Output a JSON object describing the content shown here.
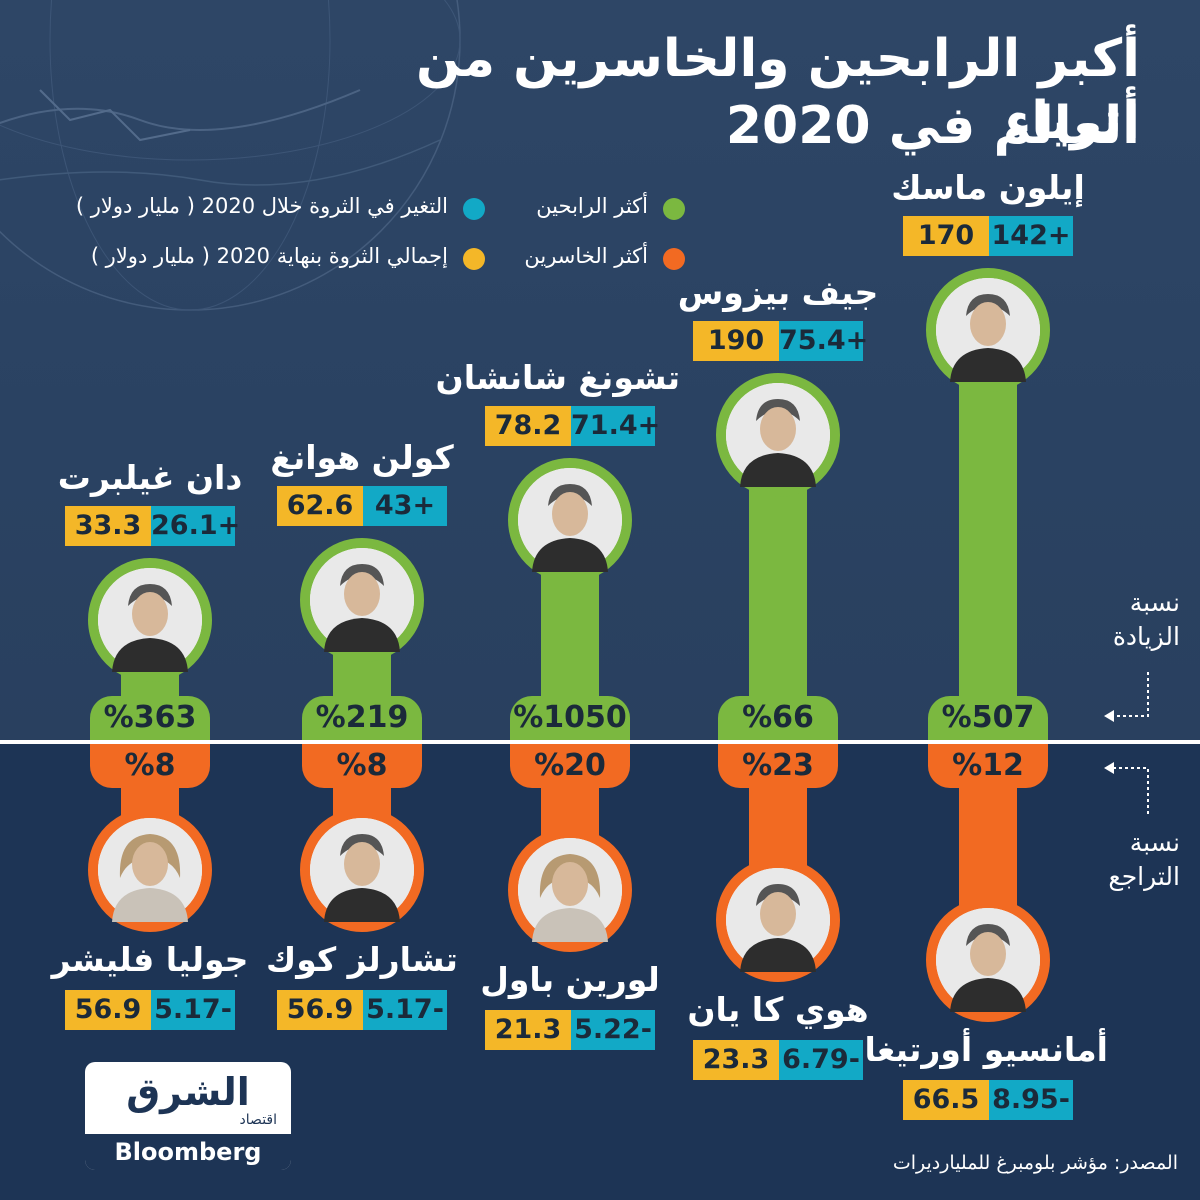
{
  "title": {
    "line1": "أكبر الرابحين والخاسرين من أثرياء",
    "line2": "العالم في 2020"
  },
  "legend": {
    "gainers": "أكثر الرابحين",
    "losers": "أكثر الخاسرين",
    "change": "التغير في الثروة خلال 2020 ( مليار دولار )",
    "total": "إجمالي الثروة بنهاية 2020 ( مليار دولار )"
  },
  "side_labels": {
    "increase_1": "نسبة",
    "increase_2": "الزيادة",
    "decrease_1": "نسبة",
    "decrease_2": "التراجع"
  },
  "colors": {
    "gainer": "#7bb840",
    "loser": "#f26a22",
    "change": "#12a9c6",
    "total": "#f4b728"
  },
  "source": "المصدر: مؤشر بلومبرغ للمليارديرات",
  "logo": {
    "arabic": "الشرق",
    "sub": "اقتصاد",
    "bloomberg": "Bloomberg"
  },
  "chart_data": {
    "type": "bar",
    "title": "أكبر الرابحين والخاسرين من أثرياء العالم في 2020",
    "series": [
      {
        "name": "أكثر الرابحين",
        "people": [
          {
            "name": "دان غيلبرت",
            "change": "26.1+",
            "total": "33.3",
            "pct_label": "%363",
            "pct": 363
          },
          {
            "name": "كولن هوانغ",
            "change": "43+",
            "total": "62.6",
            "pct_label": "%219",
            "pct": 219
          },
          {
            "name": "تشونغ شانشان",
            "change": "71.4+",
            "total": "78.2",
            "pct_label": "%1050",
            "pct": 1050
          },
          {
            "name": "جيف بيزوس",
            "change": "75.4+",
            "total": "190",
            "pct_label": "%66",
            "pct": 66
          },
          {
            "name": "إيلون ماسك",
            "change": "142+",
            "total": "170",
            "pct_label": "%507",
            "pct": 507
          }
        ]
      },
      {
        "name": "أكثر الخاسرين",
        "people": [
          {
            "name": "جوليا فليشر",
            "change": "5.17-",
            "total": "56.9",
            "pct_label": "%8",
            "pct": 8
          },
          {
            "name": "تشارلز كوك",
            "change": "5.17-",
            "total": "56.9",
            "pct_label": "%8",
            "pct": 8
          },
          {
            "name": "لورين باول",
            "change": "5.22-",
            "total": "21.3",
            "pct_label": "%20",
            "pct": 20
          },
          {
            "name": "هوي كا يان",
            "change": "6.79-",
            "total": "23.3",
            "pct_label": "%23",
            "pct": 23
          },
          {
            "name": "أمانسيو أورتيغا",
            "change": "8.95-",
            "total": "66.5",
            "pct_label": "%12",
            "pct": 12
          }
        ]
      }
    ]
  }
}
